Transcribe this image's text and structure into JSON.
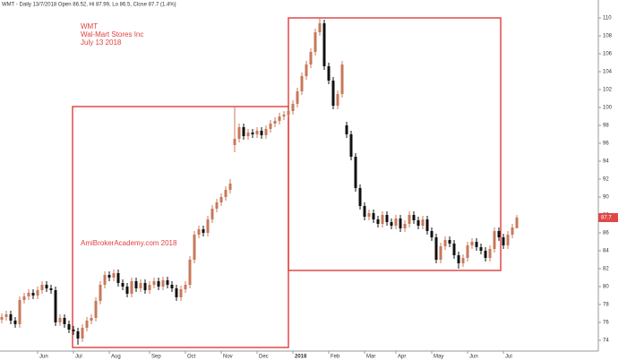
{
  "chart_data": {
    "type": "candlestick",
    "header": "WMT - Daily 13/7/2018 Open 86.52, Hi 87.99, Lo 86.5, Close 87.7 (1.4%)",
    "annotations": [
      "WMT",
      "Wal-Mart Stores Inc",
      "July 13 2018",
      "AmiBrokerAcademy.com  2018"
    ],
    "up_color": "#c8785a",
    "down_color": "#111111",
    "ylim": [
      72.8,
      111.6
    ],
    "yticks": [
      74,
      76,
      78,
      80,
      82,
      84,
      86,
      88,
      90,
      92,
      94,
      96,
      98,
      100,
      102,
      104,
      106,
      108,
      110
    ],
    "categories": [
      null,
      null,
      null,
      null,
      null,
      null,
      null,
      null,
      "Jun",
      null,
      null,
      null,
      null,
      null,
      null,
      null,
      "Jul",
      null,
      null,
      null,
      null,
      null,
      null,
      null,
      "Aug",
      null,
      null,
      null,
      null,
      null,
      null,
      null,
      null,
      "Sep",
      null,
      null,
      null,
      null,
      null,
      null,
      null,
      "Oct",
      null,
      null,
      null,
      null,
      null,
      null,
      null,
      "Nov",
      null,
      null,
      null,
      null,
      null,
      null,
      null,
      "Dec",
      null,
      null,
      null,
      null,
      null,
      null,
      null,
      "2018",
      null,
      null,
      null,
      null,
      null,
      null,
      null,
      "Feb",
      null,
      null,
      null,
      null,
      null,
      null,
      null,
      "Mar",
      null,
      null,
      null,
      null,
      null,
      null,
      "Apr",
      null,
      null,
      null,
      null,
      null,
      null,
      null,
      "May",
      null,
      null,
      null,
      null,
      null,
      null,
      null,
      "Jun",
      null,
      null,
      null,
      null,
      null,
      null,
      null,
      "Jul",
      null,
      null,
      null
    ],
    "open": [
      76.3,
      76.6,
      76.9,
      76.2,
      75.8,
      78.5,
      78.9,
      79.3,
      79.0,
      79.6,
      80.2,
      79.8,
      79.6,
      76.0,
      76.5,
      75.8,
      75.2,
      75.0,
      74.2,
      75.4,
      76.2,
      76.5,
      78.4,
      80.2,
      81.3,
      81.0,
      81.5,
      80.4,
      80.0,
      79.2,
      80.6,
      79.8,
      80.4,
      79.6,
      80.2,
      80.6,
      80.0,
      80.7,
      80.2,
      79.8,
      78.8,
      79.7,
      80.2,
      83.0,
      85.8,
      86.4,
      86.0,
      87.5,
      88.7,
      89.4,
      90.0,
      90.8,
      95.8,
      96.5,
      97.8,
      96.8,
      97.2,
      97.0,
      97.4,
      96.9,
      97.6,
      98.2,
      98.5,
      99.0,
      99.2,
      99.6,
      100.4,
      101.8,
      103.5,
      104.8,
      106.2,
      108.4,
      109.4,
      104.6,
      103.0,
      100.2,
      101.5,
      98.0,
      97.0,
      94.5,
      91.0,
      89.0,
      87.8,
      88.2,
      87.5,
      87.0,
      88.0,
      87.2,
      86.8,
      87.6,
      86.5,
      87.0,
      88.0,
      87.4,
      86.8,
      87.5,
      86.2,
      85.5,
      83.0,
      84.5,
      85.2,
      84.8,
      83.5,
      82.6,
      83.2,
      84.6,
      85.0,
      84.4,
      84.0,
      83.2,
      84.2,
      86.2,
      85.5,
      84.6,
      85.8,
      86.52
    ],
    "high": [
      77.0,
      77.3,
      77.3,
      76.6,
      78.9,
      79.3,
      79.7,
      79.7,
      80.0,
      80.6,
      80.6,
      80.2,
      80.0,
      76.9,
      76.9,
      76.2,
      75.6,
      75.4,
      75.8,
      76.6,
      76.9,
      78.8,
      80.6,
      81.7,
      81.7,
      81.9,
      81.9,
      80.8,
      80.4,
      81.0,
      81.0,
      80.8,
      80.8,
      80.6,
      81.0,
      81.0,
      81.1,
      81.1,
      80.6,
      80.2,
      80.1,
      80.6,
      83.4,
      86.2,
      86.8,
      86.8,
      87.9,
      89.1,
      89.8,
      90.4,
      91.2,
      92.0,
      100.0,
      98.2,
      98.2,
      97.6,
      97.6,
      97.8,
      97.8,
      98.0,
      98.6,
      98.9,
      99.4,
      99.6,
      100.0,
      100.8,
      102.2,
      103.9,
      105.2,
      106.6,
      108.8,
      110.0,
      109.8,
      105.0,
      103.4,
      101.9,
      105.2,
      98.4,
      97.4,
      94.9,
      91.4,
      89.4,
      88.6,
      88.6,
      87.9,
      88.4,
      88.4,
      87.6,
      88.0,
      88.0,
      87.4,
      88.4,
      88.4,
      87.8,
      87.9,
      87.9,
      86.6,
      85.9,
      84.9,
      85.6,
      85.6,
      85.2,
      83.9,
      83.6,
      85.0,
      85.4,
      85.4,
      84.8,
      84.4,
      84.6,
      86.6,
      86.6,
      85.9,
      86.2,
      87.0,
      87.99
    ],
    "low": [
      75.9,
      76.2,
      75.8,
      75.4,
      75.4,
      78.1,
      78.5,
      78.6,
      78.6,
      79.2,
      79.4,
      79.2,
      75.6,
      75.6,
      75.4,
      74.8,
      74.6,
      73.5,
      73.8,
      75.0,
      75.8,
      76.1,
      78.0,
      79.8,
      80.6,
      80.6,
      80.0,
      79.6,
      78.8,
      78.8,
      79.4,
      79.4,
      79.2,
      79.2,
      79.8,
      79.6,
      79.6,
      79.8,
      79.4,
      78.4,
      78.4,
      79.3,
      79.8,
      82.6,
      85.4,
      85.6,
      85.6,
      87.1,
      88.3,
      89.0,
      89.6,
      90.4,
      95.0,
      96.1,
      96.4,
      96.4,
      96.6,
      96.6,
      96.5,
      96.5,
      97.2,
      97.8,
      98.1,
      98.6,
      98.8,
      99.2,
      100.0,
      101.4,
      103.1,
      104.4,
      105.8,
      108.0,
      104.2,
      102.6,
      99.8,
      99.8,
      101.1,
      96.6,
      94.1,
      90.6,
      88.6,
      87.4,
      87.4,
      87.1,
      86.6,
      86.6,
      86.8,
      86.4,
      86.4,
      86.1,
      86.1,
      86.6,
      87.0,
      86.4,
      86.4,
      85.8,
      85.1,
      82.6,
      82.6,
      84.1,
      84.4,
      83.1,
      82.0,
      82.2,
      82.8,
      84.2,
      84.0,
      83.6,
      82.8,
      82.8,
      83.8,
      85.1,
      84.2,
      84.2,
      85.4,
      86.5
    ],
    "close": [
      76.6,
      76.9,
      76.2,
      75.8,
      78.5,
      78.9,
      79.3,
      79.0,
      79.6,
      80.2,
      79.8,
      79.6,
      76.0,
      76.5,
      75.8,
      75.2,
      75.0,
      74.2,
      75.4,
      76.2,
      76.5,
      78.4,
      80.2,
      81.3,
      81.0,
      81.5,
      80.4,
      80.0,
      79.2,
      80.6,
      79.8,
      80.4,
      79.6,
      80.2,
      80.6,
      80.0,
      80.7,
      80.2,
      79.8,
      78.8,
      79.7,
      80.2,
      83.0,
      85.8,
      86.4,
      86.0,
      87.5,
      88.7,
      89.4,
      90.0,
      90.8,
      91.5,
      96.5,
      97.8,
      96.8,
      97.2,
      97.0,
      97.4,
      96.9,
      97.6,
      98.2,
      98.5,
      99.0,
      99.2,
      99.6,
      100.4,
      101.8,
      103.5,
      104.8,
      106.2,
      108.4,
      109.4,
      104.6,
      103.0,
      100.2,
      101.5,
      104.8,
      97.0,
      94.5,
      91.0,
      89.0,
      87.8,
      88.2,
      87.5,
      87.0,
      88.0,
      87.2,
      86.8,
      87.6,
      86.5,
      87.0,
      88.0,
      87.4,
      86.8,
      87.5,
      86.2,
      85.5,
      83.0,
      84.5,
      85.2,
      84.8,
      83.5,
      82.6,
      83.2,
      84.6,
      85.0,
      84.4,
      84.0,
      83.2,
      84.2,
      86.2,
      85.5,
      84.6,
      85.8,
      86.6,
      87.7
    ]
  }
}
